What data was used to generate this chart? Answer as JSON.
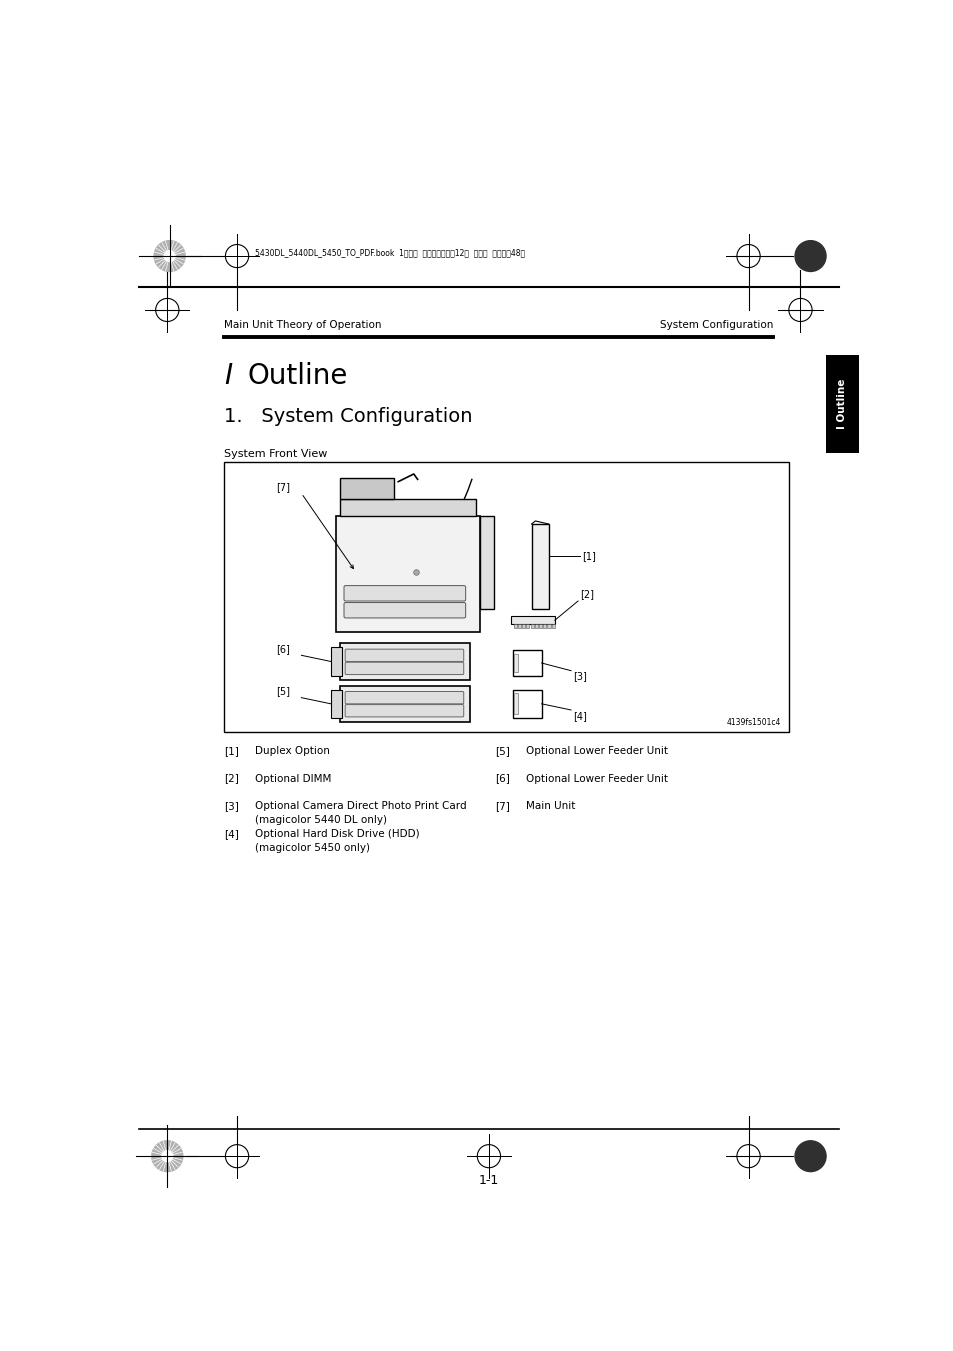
{
  "bg_color": "#ffffff",
  "page_width": 9.54,
  "page_height": 13.51,
  "header_text_left": "Main Unit Theory of Operation",
  "header_text_right": "System Configuration",
  "title_text": "I   Outline",
  "section_text": "1.   System Configuration",
  "subheading": "System Front View",
  "tab_text": "I Outline",
  "image_caption": "4139fs1501c4",
  "file_header": "5430DL_5440DL_5450_TO_PDF.book  1 ページ  ２００５年４月12日  火曜日  午後４晉48分",
  "items_left": [
    {
      "num": "[1]",
      "text": "Duplex Option"
    },
    {
      "num": "[2]",
      "text": "Optional DIMM"
    },
    {
      "num": "[3]",
      "text": "Optional Camera Direct Photo Print Card",
      "text2": "(magicolor 5440 DL only)"
    },
    {
      "num": "[4]",
      "text": "Optional Hard Disk Drive (HDD)",
      "text2": "(magicolor 5450 only)"
    }
  ],
  "items_right": [
    {
      "num": "[5]",
      "text": "Optional Lower Feeder Unit"
    },
    {
      "num": "[6]",
      "text": "Optional Lower Feeder Unit"
    },
    {
      "num": "[7]",
      "text": "Main Unit"
    }
  ]
}
